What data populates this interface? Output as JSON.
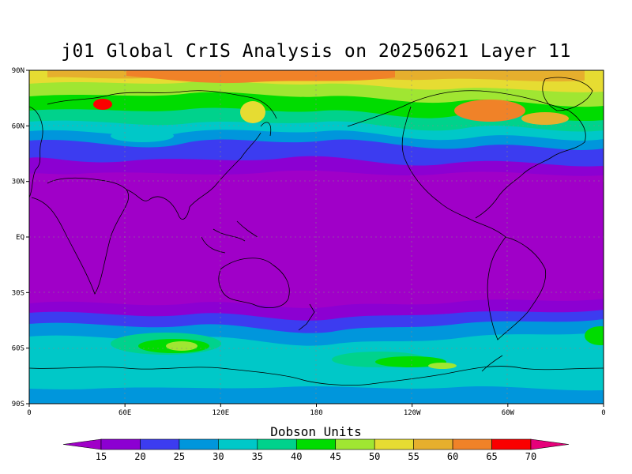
{
  "title": "j01 Global CrIS Analysis on 20250621 Layer 11",
  "units_label": "Dobson Units",
  "lat_ticks": [
    "90N",
    "60N",
    "30N",
    "EQ",
    "30S",
    "60S",
    "90S"
  ],
  "lon_ticks": [
    "0",
    "60E",
    "120E",
    "180",
    "120W",
    "60W",
    "0"
  ],
  "colorbar": {
    "levels": [
      "15",
      "20",
      "25",
      "30",
      "35",
      "40",
      "45",
      "50",
      "55",
      "60",
      "65",
      "70"
    ],
    "colors": [
      "#a000c8",
      "#8c00d2",
      "#3c3cf0",
      "#0096dc",
      "#00c8c8",
      "#00d28c",
      "#00dc00",
      "#a0e632",
      "#e6dc32",
      "#e6af2d",
      "#f08228",
      "#fa0000",
      "#e6007a"
    ]
  }
}
